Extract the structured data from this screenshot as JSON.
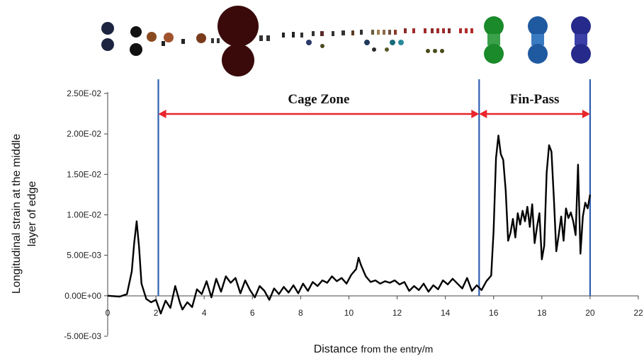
{
  "chart_data": {
    "type": "line",
    "xlabel_main": "Distance",
    "xlabel_suffix": "from the entry/m",
    "ylabel_line1": "Longitudinal strain at the middle",
    "ylabel_line2": "layer of edge",
    "xlim": [
      0,
      22
    ],
    "ylim": [
      -0.005,
      0.025
    ],
    "x_ticks": [
      0,
      2,
      4,
      6,
      8,
      10,
      12,
      14,
      16,
      18,
      20,
      22
    ],
    "x_tick_labels": [
      "0",
      "2",
      "4",
      "6",
      "8",
      "10",
      "12",
      "14",
      "16",
      "18",
      "20",
      "22"
    ],
    "y_ticks": [
      -0.005,
      0,
      0.005,
      0.01,
      0.015,
      0.02,
      0.025
    ],
    "y_tick_labels": [
      "-5.00E-03",
      "0.00E+00",
      "5.00E-03",
      "1.00E-02",
      "1.50E-02",
      "2.00E-02",
      "2.50E-02"
    ],
    "grid": false,
    "series_color": "#000000",
    "boundary_color": "#2f5fb0",
    "arrow_color": "#e8262b",
    "zones": [
      {
        "label": "Cage Zone",
        "x_start": 2.1,
        "x_end": 15.4
      },
      {
        "label": "Fin-Pass",
        "x_start": 15.4,
        "x_end": 20.0
      }
    ],
    "boundaries": [
      2.1,
      15.4,
      20.0
    ],
    "series": [
      {
        "x": [
          0,
          0.5,
          0.8,
          1.0,
          1.1,
          1.2,
          1.3,
          1.4,
          1.6,
          1.8,
          2.0,
          2.2,
          2.4,
          2.6,
          2.8,
          3.0,
          3.1,
          3.3,
          3.5,
          3.7,
          3.9,
          4.1,
          4.3,
          4.5,
          4.7,
          4.9,
          5.1,
          5.3,
          5.5,
          5.7,
          5.9,
          6.1,
          6.3,
          6.5,
          6.7,
          6.9,
          7.1,
          7.3,
          7.5,
          7.7,
          7.9,
          8.1,
          8.3,
          8.5,
          8.7,
          8.9,
          9.1,
          9.3,
          9.5,
          9.7,
          9.9,
          10.1,
          10.3,
          10.4,
          10.5,
          10.7,
          10.9,
          11.1,
          11.3,
          11.5,
          11.7,
          11.9,
          12.1,
          12.3,
          12.5,
          12.7,
          12.9,
          13.1,
          13.3,
          13.5,
          13.7,
          13.9,
          14.1,
          14.3,
          14.5,
          14.7,
          14.9,
          15.1,
          15.3,
          15.5,
          15.7,
          15.9,
          16.0,
          16.1,
          16.2,
          16.3,
          16.4,
          16.5,
          16.6,
          16.7,
          16.8,
          16.9,
          17.0,
          17.1,
          17.2,
          17.3,
          17.4,
          17.5,
          17.6,
          17.7,
          17.8,
          17.9,
          18.0,
          18.1,
          18.2,
          18.3,
          18.4,
          18.5,
          18.6,
          18.7,
          18.8,
          18.9,
          19.0,
          19.1,
          19.2,
          19.3,
          19.4,
          19.5,
          19.6,
          19.7,
          19.8,
          19.9,
          20.0
        ],
        "y": [
          0.0,
          -0.0001,
          0.0002,
          0.003,
          0.0065,
          0.0092,
          0.006,
          0.0015,
          -0.0004,
          -0.0008,
          -0.0005,
          -0.0022,
          -0.0006,
          -0.0015,
          0.0012,
          -0.0009,
          -0.0017,
          -0.0008,
          -0.0014,
          0.0008,
          0.0002,
          0.0018,
          -0.0002,
          0.0021,
          0.0005,
          0.0024,
          0.0016,
          0.0022,
          0.0003,
          0.0019,
          0.0007,
          -0.0002,
          0.0012,
          0.0006,
          -0.0005,
          0.0009,
          0.0002,
          0.0011,
          0.0004,
          0.0013,
          0.0003,
          0.0015,
          0.0006,
          0.0017,
          0.0012,
          0.0019,
          0.0016,
          0.0024,
          0.0018,
          0.0022,
          0.0015,
          0.0026,
          0.0033,
          0.0047,
          0.0038,
          0.0024,
          0.0017,
          0.0019,
          0.0015,
          0.0018,
          0.0016,
          0.0019,
          0.0014,
          0.0017,
          0.0006,
          0.0012,
          0.0007,
          0.0015,
          0.0005,
          0.0013,
          0.0008,
          0.0019,
          0.0014,
          0.0021,
          0.0015,
          0.0009,
          0.0022,
          0.0006,
          0.0013,
          0.0007,
          0.0018,
          0.0025,
          0.008,
          0.017,
          0.0198,
          0.0175,
          0.0168,
          0.013,
          0.0068,
          0.0078,
          0.0095,
          0.0072,
          0.0102,
          0.0088,
          0.0105,
          0.0092,
          0.011,
          0.0085,
          0.0113,
          0.0065,
          0.0085,
          0.0102,
          0.0045,
          0.0062,
          0.0152,
          0.0186,
          0.0178,
          0.012,
          0.0055,
          0.0075,
          0.0098,
          0.0068,
          0.0108,
          0.0096,
          0.0103,
          0.0092,
          0.0075,
          0.0162,
          0.0052,
          0.0098,
          0.0115,
          0.0108,
          0.0125
        ]
      }
    ]
  }
}
